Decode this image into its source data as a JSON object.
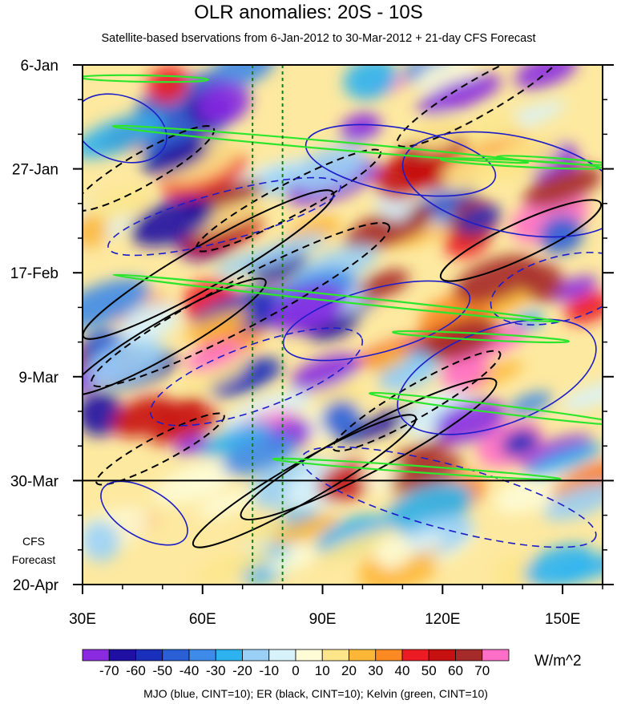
{
  "chart_data": {
    "type": "heatmap",
    "title": "OLR anomalies: 20S - 10S",
    "subtitle": "Satellite-based bservations from 6-Jan-2012 to 30-Mar-2012 + 21-day CFS Forecast",
    "x_ticks": [
      "30E",
      "60E",
      "90E",
      "120E",
      "150E"
    ],
    "x_tick_values": [
      30,
      60,
      90,
      120,
      150
    ],
    "xlim": [
      30,
      160
    ],
    "y_ticks": [
      "6-Jan",
      "27-Jan",
      "17-Feb",
      "9-Mar",
      "30-Mar",
      "20-Apr"
    ],
    "ylim": [
      "6-Jan-2012",
      "20-Apr-2012"
    ],
    "observation_end": "30-Mar-2012",
    "forecast_label": [
      "CFS",
      "Forecast"
    ],
    "reference_longitudes": [
      72.5,
      80
    ],
    "colorbar": {
      "labels": [
        "-70",
        "-60",
        "-50",
        "-40",
        "-30",
        "-20",
        "-10",
        "0",
        "10",
        "20",
        "30",
        "40",
        "50",
        "60",
        "70"
      ],
      "colors": [
        "#8a2be2",
        "#1f0fa3",
        "#1b2fbd",
        "#2a5fd6",
        "#3d8ae8",
        "#2bb2ef",
        "#9ad0f6",
        "#d8f2fb",
        "#fdfcd6",
        "#fde68a",
        "#fdb737",
        "#fb8a22",
        "#ed1b24",
        "#c71010",
        "#a52a2a",
        "#ff6ec7"
      ],
      "units": "W/m^2"
    },
    "contours_legend": "MJO (blue, CINT=10); ER (black, CINT=10); Kelvin (green, CINT=10)",
    "series": [
      {
        "name": "MJO",
        "color": "#1c1cc8"
      },
      {
        "name": "ER",
        "color": "#000000"
      },
      {
        "name": "Kelvin",
        "color": "#2ee52e"
      }
    ]
  }
}
